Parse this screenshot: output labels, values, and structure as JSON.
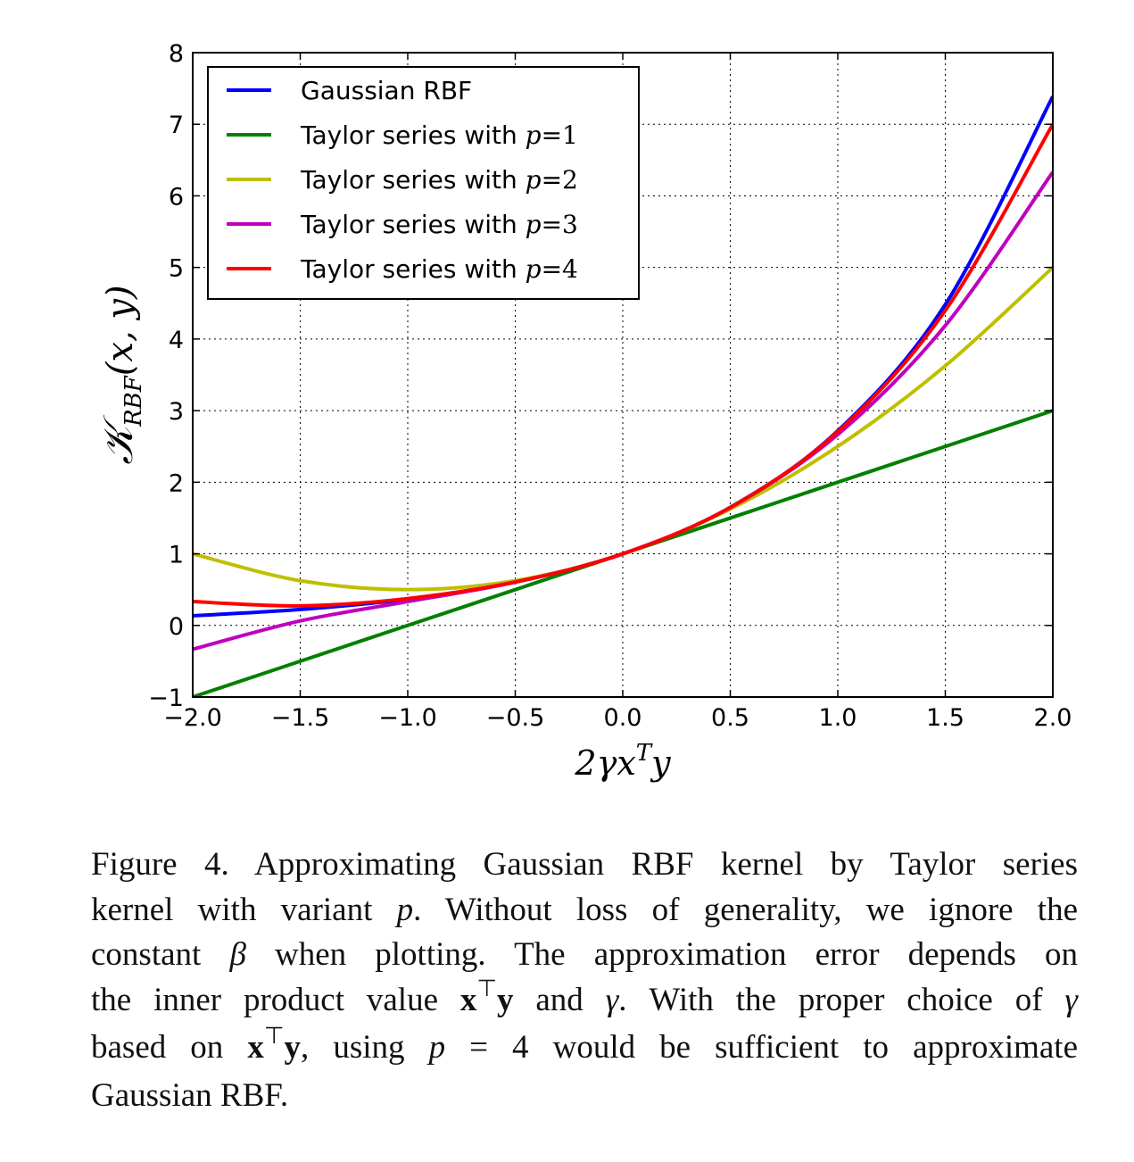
{
  "chart_data": {
    "type": "line",
    "xlabel": "2γx^T y",
    "ylabel": "K_RBF(x, y)",
    "xlim": [
      -2.0,
      2.0
    ],
    "ylim": [
      -1,
      8
    ],
    "xticks": [
      "−2.0",
      "−1.5",
      "−1.0",
      "−0.5",
      "0.0",
      "0.5",
      "1.0",
      "1.5",
      "2.0"
    ],
    "xtick_values": [
      -2.0,
      -1.5,
      -1.0,
      -0.5,
      0.0,
      0.5,
      1.0,
      1.5,
      2.0
    ],
    "yticks": [
      "−1",
      "0",
      "1",
      "2",
      "3",
      "4",
      "5",
      "6",
      "7",
      "8"
    ],
    "ytick_values": [
      -1,
      0,
      1,
      2,
      3,
      4,
      5,
      6,
      7,
      8
    ],
    "grid": true,
    "legend_position": "top-left",
    "x": [
      -2.0,
      -1.5,
      -1.0,
      -0.5,
      0.0,
      0.5,
      1.0,
      1.5,
      2.0
    ],
    "series": [
      {
        "name": "Gaussian RBF",
        "color": "#0000ff",
        "values": [
          0.135,
          0.223,
          0.368,
          0.607,
          1.0,
          1.649,
          2.718,
          4.482,
          7.389
        ]
      },
      {
        "name": "Taylor series with p=1",
        "color": "#008000",
        "values": [
          -1.0,
          -0.5,
          0.0,
          0.5,
          1.0,
          1.5,
          2.0,
          2.5,
          3.0
        ]
      },
      {
        "name": "Taylor series with p=2",
        "color": "#bfbf00",
        "values": [
          1.0,
          0.625,
          0.5,
          0.625,
          1.0,
          1.625,
          2.5,
          3.625,
          5.0
        ]
      },
      {
        "name": "Taylor series with p=3",
        "color": "#bf00bf",
        "values": [
          -0.333,
          0.063,
          0.333,
          0.604,
          1.0,
          1.646,
          2.667,
          4.188,
          6.333
        ]
      },
      {
        "name": "Taylor series with p=4",
        "color": "#ff0000",
        "values": [
          0.333,
          0.273,
          0.375,
          0.607,
          1.0,
          1.648,
          2.708,
          4.398,
          7.0
        ]
      }
    ]
  },
  "legend": {
    "entries": [
      {
        "text": "Gaussian RBF",
        "math": ""
      },
      {
        "text": "Taylor series with ",
        "math": "p=1"
      },
      {
        "text": "Taylor series with ",
        "math": "p=2"
      },
      {
        "text": "Taylor series with ",
        "math": "p=3"
      },
      {
        "text": "Taylor series with ",
        "math": "p=4"
      }
    ]
  },
  "caption": {
    "l1": "Figure 4. Approximating Gaussian RBF kernel by Taylor series",
    "l2a": "kernel with variant ",
    "l2b": "p",
    "l2c": ". Without loss of generality, we ignore the",
    "l3a": "constant ",
    "l3b": "β",
    "l3c": " when plotting. The approximation error depends on",
    "l4a": "the inner product value ",
    "l4b": "x",
    "l4c": "⊤",
    "l4d": "y",
    "l4e": " and ",
    "l4f": "γ",
    "l4g": ". With the proper choice of ",
    "l4h": "γ",
    "l5a": "based on ",
    "l5b": "x",
    "l5c": "⊤",
    "l5d": "y",
    "l5e": ", using ",
    "l5f": "p",
    "l5g": " = ",
    "l5h": "4 would be sufficient to approximate",
    "l6": "Gaussian RBF."
  }
}
